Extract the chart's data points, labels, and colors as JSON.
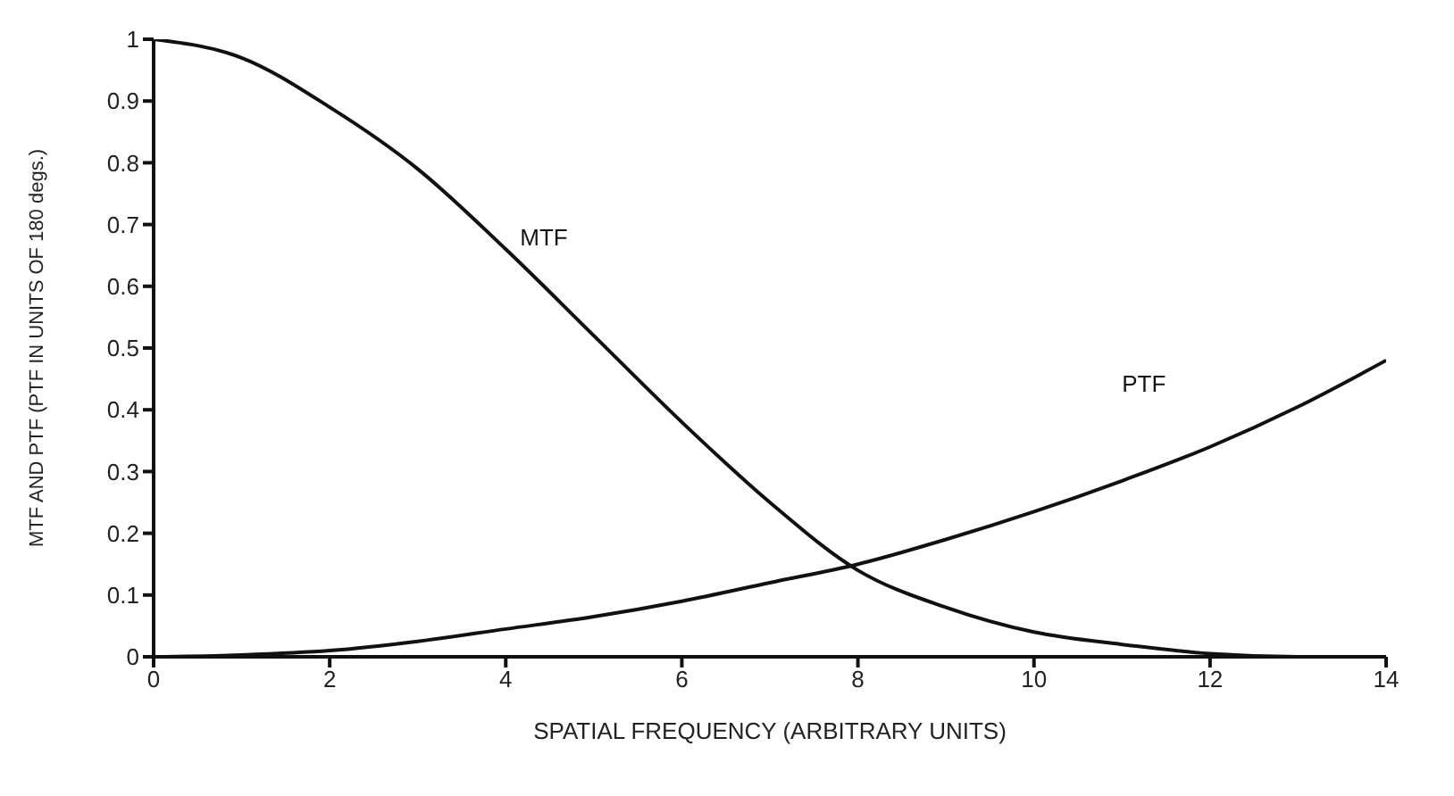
{
  "chart_data": {
    "type": "line",
    "xlabel": "SPATIAL FREQUENCY (ARBITRARY UNITS)",
    "ylabel": "MTF AND PTF (PTF IN UNITS OF 180 degs.)",
    "x": [
      0,
      1,
      2,
      3,
      4,
      5,
      6,
      7,
      8,
      9,
      10,
      11,
      12,
      13,
      14
    ],
    "series": [
      {
        "name": "MTF",
        "color": "#111111",
        "values": [
          1,
          0.97,
          0.89,
          0.79,
          0.66,
          0.52,
          0.38,
          0.25,
          0.14,
          0.08,
          0.04,
          0.02,
          0.005,
          0,
          0
        ]
      },
      {
        "name": "PTF",
        "color": "#111111",
        "values": [
          0,
          0.003,
          0.01,
          0.025,
          0.045,
          0.065,
          0.09,
          0.12,
          0.15,
          0.19,
          0.235,
          0.285,
          0.34,
          0.405,
          0.48
        ]
      }
    ],
    "xlim": [
      0,
      14
    ],
    "xticks": [
      0,
      2,
      4,
      6,
      8,
      10,
      12,
      14
    ],
    "ylim": [
      0,
      1
    ],
    "yticks": [
      0,
      0.1,
      0.2,
      0.3,
      0.4,
      0.5,
      0.6,
      0.7,
      0.8,
      0.9,
      1
    ],
    "grid": false,
    "legend": false,
    "marker": "none",
    "line_style": "solid"
  }
}
